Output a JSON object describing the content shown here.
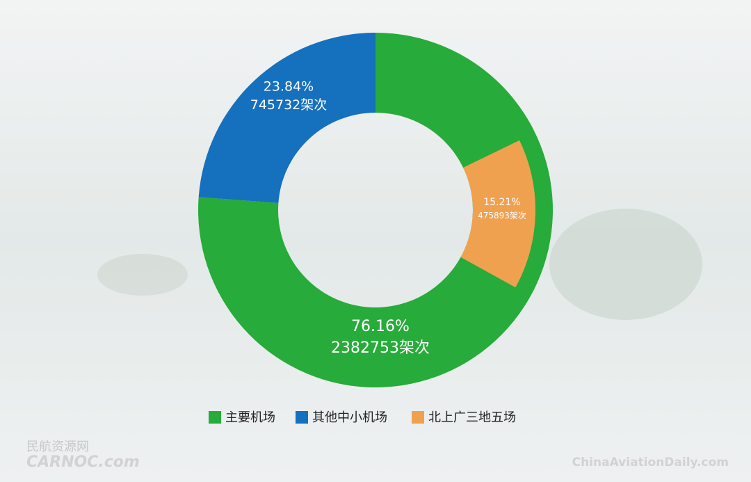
{
  "chart_data": {
    "type": "donut",
    "categories": [
      "主要机场",
      "其他中小机场",
      "北上广三地五场"
    ],
    "values": [
      76.16,
      23.84,
      15.21
    ],
    "value_labels": [
      "76.16%",
      "23.84%",
      "15.21%"
    ],
    "counts": [
      2382753,
      745732,
      475893
    ],
    "count_labels": [
      "2382753架次",
      "745732架次",
      "475893架次"
    ],
    "colors": [
      "#27ab3a",
      "#1570bd",
      "#f0a150"
    ],
    "legend": "bottom"
  },
  "watermarks": {
    "left_cn": "民航资源网",
    "left_en": "CARNOC.com",
    "right_en": "ChinaAviationDaily.com"
  }
}
